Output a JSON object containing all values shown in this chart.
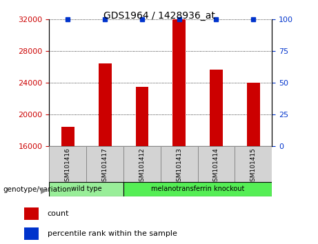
{
  "title": "GDS1964 / 1428936_at",
  "categories": [
    "GSM101416",
    "GSM101417",
    "GSM101412",
    "GSM101413",
    "GSM101414",
    "GSM101415"
  ],
  "counts": [
    18500,
    26500,
    23500,
    32000,
    25700,
    24000
  ],
  "percentile_ranks": [
    100,
    100,
    100,
    100,
    100,
    100
  ],
  "ylim_left": [
    16000,
    32000
  ],
  "ylim_right": [
    0,
    100
  ],
  "yticks_left": [
    16000,
    20000,
    24000,
    28000,
    32000
  ],
  "yticks_right": [
    0,
    25,
    50,
    75,
    100
  ],
  "bar_color": "#CC0000",
  "percentile_color": "#0033CC",
  "groups": [
    {
      "label": "wild type",
      "indices": [
        0,
        1
      ],
      "color": "#99EE99"
    },
    {
      "label": "melanotransferrin knockout",
      "indices": [
        2,
        3,
        4,
        5
      ],
      "color": "#55EE55"
    }
  ],
  "genotype_label": "genotype/variation",
  "legend_count_label": "count",
  "legend_percentile_label": "percentile rank within the sample",
  "bar_width": 0.35,
  "axes_bg_color": "#FFFFFF"
}
